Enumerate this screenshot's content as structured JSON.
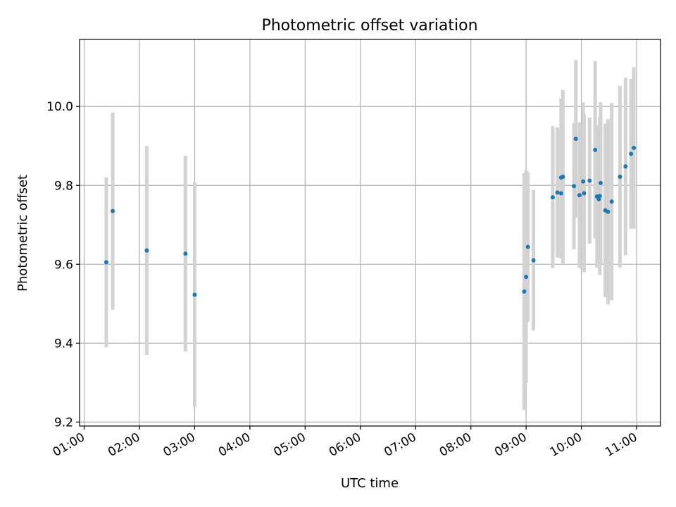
{
  "chart_data": {
    "type": "scatter",
    "title": "Photometric offset variation",
    "xlabel": "UTC time",
    "ylabel": "Photometric offset",
    "x_unit": "hours UTC",
    "xlim": [
      "00:55",
      "11:26"
    ],
    "ylim": [
      9.19,
      10.17
    ],
    "x_ticks": [
      "01:00",
      "02:00",
      "03:00",
      "04:00",
      "05:00",
      "06:00",
      "07:00",
      "08:00",
      "09:00",
      "10:00",
      "11:00"
    ],
    "y_ticks": [
      "9.2",
      "9.4",
      "9.6",
      "9.8",
      "10.0"
    ],
    "grid": true,
    "marker_color": "#1f77b4",
    "errorbar_color": "#d3d3d3",
    "points": [
      {
        "x": "01:24",
        "y": 9.605,
        "err": 0.215
      },
      {
        "x": "01:31",
        "y": 9.735,
        "err": 0.25
      },
      {
        "x": "02:08",
        "y": 9.635,
        "err": 0.265
      },
      {
        "x": "02:50",
        "y": 9.627,
        "err": 0.248
      },
      {
        "x": "03:00",
        "y": 9.523,
        "err": 0.285
      },
      {
        "x": "08:58",
        "y": 9.531,
        "err": 0.3
      },
      {
        "x": "09:00",
        "y": 9.568,
        "err": 0.27
      },
      {
        "x": "09:02",
        "y": 9.644,
        "err": 0.19
      },
      {
        "x": "09:08",
        "y": 9.61,
        "err": 0.178
      },
      {
        "x": "09:29",
        "y": 9.77,
        "err": 0.18
      },
      {
        "x": "09:34",
        "y": 9.782,
        "err": 0.165
      },
      {
        "x": "09:38",
        "y": 9.78,
        "err": 0.165
      },
      {
        "x": "09:38",
        "y": 9.82,
        "err": 0.2
      },
      {
        "x": "09:40",
        "y": 9.822,
        "err": 0.22
      },
      {
        "x": "09:52",
        "y": 9.798,
        "err": 0.16
      },
      {
        "x": "09:54",
        "y": 9.918,
        "err": 0.2
      },
      {
        "x": "09:58",
        "y": 9.775,
        "err": 0.185
      },
      {
        "x": "10:02",
        "y": 9.81,
        "err": 0.2
      },
      {
        "x": "10:03",
        "y": 9.78,
        "err": 0.2
      },
      {
        "x": "10:09",
        "y": 9.812,
        "err": 0.16
      },
      {
        "x": "10:15",
        "y": 9.89,
        "err": 0.225
      },
      {
        "x": "10:17",
        "y": 9.772,
        "err": 0.18
      },
      {
        "x": "10:19",
        "y": 9.765,
        "err": 0.175
      },
      {
        "x": "10:20",
        "y": 9.773,
        "err": 0.2
      },
      {
        "x": "10:21",
        "y": 9.806,
        "err": 0.205
      },
      {
        "x": "10:26",
        "y": 9.737,
        "err": 0.22
      },
      {
        "x": "10:29",
        "y": 9.733,
        "err": 0.235
      },
      {
        "x": "10:33",
        "y": 9.759,
        "err": 0.25
      },
      {
        "x": "10:42",
        "y": 9.822,
        "err": 0.23
      },
      {
        "x": "10:48",
        "y": 9.848,
        "err": 0.225
      },
      {
        "x": "10:54",
        "y": 9.88,
        "err": 0.19
      },
      {
        "x": "10:57",
        "y": 9.895,
        "err": 0.205
      }
    ]
  }
}
